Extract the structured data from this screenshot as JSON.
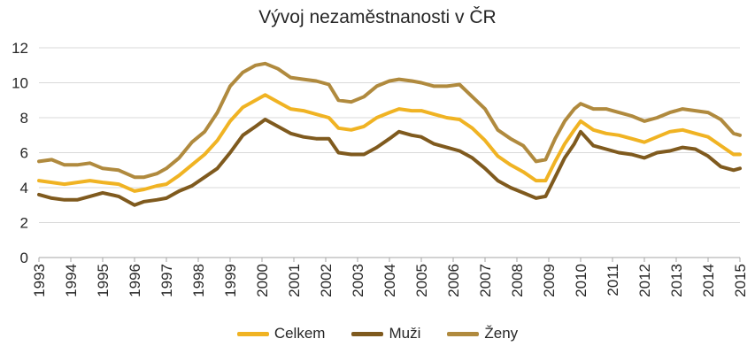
{
  "chart_data": {
    "type": "line",
    "title": "Vývoj nezaměstnanosti v ČR",
    "xlabel": "",
    "ylabel": "",
    "xlim": [
      1993,
      2015
    ],
    "ylim": [
      0,
      12
    ],
    "y_ticks": [
      "0",
      "2",
      "4",
      "6",
      "8",
      "10",
      "12"
    ],
    "x_tick_labels": [
      "1993",
      "1994",
      "1995",
      "1996",
      "1997",
      "1998",
      "1999",
      "2000",
      "2001",
      "2002",
      "2003",
      "2004",
      "2005",
      "2006",
      "2007",
      "2008",
      "2009",
      "2010",
      "2011",
      "2012",
      "2013",
      "2014",
      "2015"
    ],
    "grid": "horizontal",
    "legend_position": "bottom",
    "series": [
      {
        "name": "Celkem",
        "color": "#F0B323",
        "points": [
          [
            1993.0,
            4.4
          ],
          [
            1993.4,
            4.3
          ],
          [
            1993.8,
            4.2
          ],
          [
            1994.2,
            4.3
          ],
          [
            1994.6,
            4.4
          ],
          [
            1995.0,
            4.3
          ],
          [
            1995.5,
            4.2
          ],
          [
            1996.0,
            3.8
          ],
          [
            1996.3,
            3.9
          ],
          [
            1996.7,
            4.1
          ],
          [
            1997.0,
            4.2
          ],
          [
            1997.4,
            4.7
          ],
          [
            1997.8,
            5.3
          ],
          [
            1998.2,
            5.9
          ],
          [
            1998.6,
            6.7
          ],
          [
            1999.0,
            7.8
          ],
          [
            1999.4,
            8.6
          ],
          [
            1999.8,
            9.0
          ],
          [
            2000.1,
            9.3
          ],
          [
            2000.5,
            8.9
          ],
          [
            2000.9,
            8.5
          ],
          [
            2001.3,
            8.4
          ],
          [
            2001.7,
            8.2
          ],
          [
            2002.1,
            8.0
          ],
          [
            2002.4,
            7.4
          ],
          [
            2002.8,
            7.3
          ],
          [
            2003.2,
            7.5
          ],
          [
            2003.6,
            8.0
          ],
          [
            2004.0,
            8.3
          ],
          [
            2004.3,
            8.5
          ],
          [
            2004.7,
            8.4
          ],
          [
            2005.0,
            8.4
          ],
          [
            2005.4,
            8.2
          ],
          [
            2005.8,
            8.0
          ],
          [
            2006.2,
            7.9
          ],
          [
            2006.6,
            7.4
          ],
          [
            2007.0,
            6.7
          ],
          [
            2007.4,
            5.8
          ],
          [
            2007.8,
            5.3
          ],
          [
            2008.2,
            4.9
          ],
          [
            2008.6,
            4.4
          ],
          [
            2008.9,
            4.4
          ],
          [
            2009.2,
            5.5
          ],
          [
            2009.5,
            6.5
          ],
          [
            2009.8,
            7.3
          ],
          [
            2010.0,
            7.8
          ],
          [
            2010.4,
            7.3
          ],
          [
            2010.8,
            7.1
          ],
          [
            2011.2,
            7.0
          ],
          [
            2011.6,
            6.8
          ],
          [
            2012.0,
            6.6
          ],
          [
            2012.4,
            6.9
          ],
          [
            2012.8,
            7.2
          ],
          [
            2013.2,
            7.3
          ],
          [
            2013.6,
            7.1
          ],
          [
            2014.0,
            6.9
          ],
          [
            2014.4,
            6.4
          ],
          [
            2014.8,
            5.9
          ],
          [
            2015.0,
            5.9
          ]
        ]
      },
      {
        "name": "Muži",
        "color": "#7F5A1E",
        "points": [
          [
            1993.0,
            3.6
          ],
          [
            1993.4,
            3.4
          ],
          [
            1993.8,
            3.3
          ],
          [
            1994.2,
            3.3
          ],
          [
            1994.6,
            3.5
          ],
          [
            1995.0,
            3.7
          ],
          [
            1995.5,
            3.5
          ],
          [
            1996.0,
            3.0
          ],
          [
            1996.3,
            3.2
          ],
          [
            1996.7,
            3.3
          ],
          [
            1997.0,
            3.4
          ],
          [
            1997.4,
            3.8
          ],
          [
            1997.8,
            4.1
          ],
          [
            1998.2,
            4.6
          ],
          [
            1998.6,
            5.1
          ],
          [
            1999.0,
            6.0
          ],
          [
            1999.4,
            7.0
          ],
          [
            1999.8,
            7.5
          ],
          [
            2000.1,
            7.9
          ],
          [
            2000.5,
            7.5
          ],
          [
            2000.9,
            7.1
          ],
          [
            2001.3,
            6.9
          ],
          [
            2001.7,
            6.8
          ],
          [
            2002.1,
            6.8
          ],
          [
            2002.4,
            6.0
          ],
          [
            2002.8,
            5.9
          ],
          [
            2003.2,
            5.9
          ],
          [
            2003.6,
            6.3
          ],
          [
            2004.0,
            6.8
          ],
          [
            2004.3,
            7.2
          ],
          [
            2004.7,
            7.0
          ],
          [
            2005.0,
            6.9
          ],
          [
            2005.4,
            6.5
          ],
          [
            2005.8,
            6.3
          ],
          [
            2006.2,
            6.1
          ],
          [
            2006.6,
            5.7
          ],
          [
            2007.0,
            5.1
          ],
          [
            2007.4,
            4.4
          ],
          [
            2007.8,
            4.0
          ],
          [
            2008.2,
            3.7
          ],
          [
            2008.6,
            3.4
          ],
          [
            2008.9,
            3.5
          ],
          [
            2009.2,
            4.6
          ],
          [
            2009.5,
            5.7
          ],
          [
            2009.8,
            6.5
          ],
          [
            2010.0,
            7.2
          ],
          [
            2010.4,
            6.4
          ],
          [
            2010.8,
            6.2
          ],
          [
            2011.2,
            6.0
          ],
          [
            2011.6,
            5.9
          ],
          [
            2012.0,
            5.7
          ],
          [
            2012.4,
            6.0
          ],
          [
            2012.8,
            6.1
          ],
          [
            2013.2,
            6.3
          ],
          [
            2013.6,
            6.2
          ],
          [
            2014.0,
            5.8
          ],
          [
            2014.4,
            5.2
          ],
          [
            2014.8,
            5.0
          ],
          [
            2015.0,
            5.1
          ]
        ]
      },
      {
        "name": "Ženy",
        "color": "#B08A3E",
        "points": [
          [
            1993.0,
            5.5
          ],
          [
            1993.4,
            5.6
          ],
          [
            1993.8,
            5.3
          ],
          [
            1994.2,
            5.3
          ],
          [
            1994.6,
            5.4
          ],
          [
            1995.0,
            5.1
          ],
          [
            1995.5,
            5.0
          ],
          [
            1996.0,
            4.6
          ],
          [
            1996.3,
            4.6
          ],
          [
            1996.7,
            4.8
          ],
          [
            1997.0,
            5.1
          ],
          [
            1997.4,
            5.7
          ],
          [
            1997.8,
            6.6
          ],
          [
            1998.2,
            7.2
          ],
          [
            1998.6,
            8.3
          ],
          [
            1999.0,
            9.8
          ],
          [
            1999.4,
            10.6
          ],
          [
            1999.8,
            11.0
          ],
          [
            2000.1,
            11.1
          ],
          [
            2000.5,
            10.8
          ],
          [
            2000.9,
            10.3
          ],
          [
            2001.3,
            10.2
          ],
          [
            2001.7,
            10.1
          ],
          [
            2002.1,
            9.9
          ],
          [
            2002.4,
            9.0
          ],
          [
            2002.8,
            8.9
          ],
          [
            2003.2,
            9.2
          ],
          [
            2003.6,
            9.8
          ],
          [
            2004.0,
            10.1
          ],
          [
            2004.3,
            10.2
          ],
          [
            2004.7,
            10.1
          ],
          [
            2005.0,
            10.0
          ],
          [
            2005.4,
            9.8
          ],
          [
            2005.8,
            9.8
          ],
          [
            2006.2,
            9.9
          ],
          [
            2006.6,
            9.2
          ],
          [
            2007.0,
            8.5
          ],
          [
            2007.4,
            7.3
          ],
          [
            2007.8,
            6.8
          ],
          [
            2008.2,
            6.4
          ],
          [
            2008.6,
            5.5
          ],
          [
            2008.9,
            5.6
          ],
          [
            2009.2,
            6.8
          ],
          [
            2009.5,
            7.8
          ],
          [
            2009.8,
            8.5
          ],
          [
            2010.0,
            8.8
          ],
          [
            2010.4,
            8.5
          ],
          [
            2010.8,
            8.5
          ],
          [
            2011.2,
            8.3
          ],
          [
            2011.6,
            8.1
          ],
          [
            2012.0,
            7.8
          ],
          [
            2012.4,
            8.0
          ],
          [
            2012.8,
            8.3
          ],
          [
            2013.2,
            8.5
          ],
          [
            2013.6,
            8.4
          ],
          [
            2014.0,
            8.3
          ],
          [
            2014.4,
            7.9
          ],
          [
            2014.8,
            7.1
          ],
          [
            2015.0,
            7.0
          ]
        ]
      }
    ]
  }
}
